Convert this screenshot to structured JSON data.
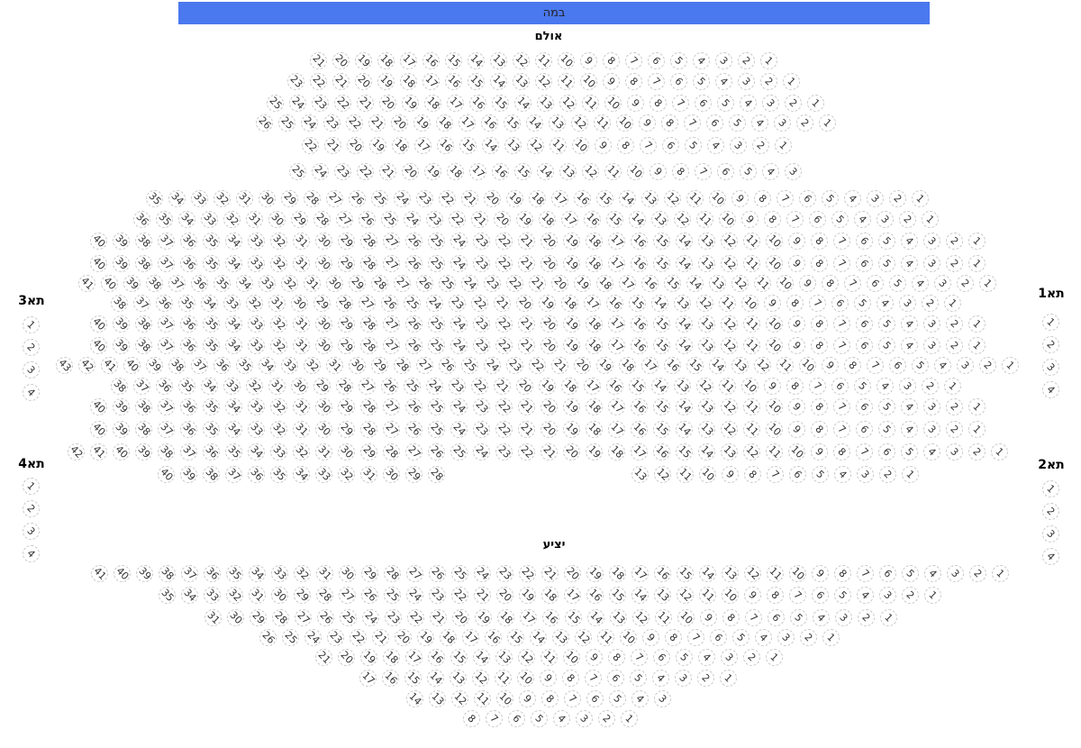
{
  "stage_label": "במה",
  "hall_label": "אולם",
  "balcony_label": "יציע",
  "colors": {
    "stage": "#4a78ee",
    "seat_border": "#c8c8c8",
    "seat_text": "#333333"
  },
  "hall_rows": [
    [
      {
        "from": 21,
        "to": 1
      }
    ],
    [
      {
        "from": 23,
        "to": 1
      }
    ],
    [
      {
        "from": 25,
        "to": 1
      }
    ],
    [
      {
        "from": 26,
        "to": 1
      }
    ],
    [
      {
        "from": 22,
        "to": 1
      }
    ],
    [
      {
        "from": 25,
        "to": 3
      }
    ],
    [
      {
        "from": 35,
        "to": 1
      }
    ],
    [
      {
        "from": 36,
        "to": 1
      }
    ],
    [
      {
        "from": 40,
        "to": 1
      }
    ],
    [
      {
        "from": 40,
        "to": 1
      }
    ],
    [
      {
        "from": 41,
        "to": 1
      }
    ],
    [
      {
        "from": 38,
        "to": 1
      }
    ],
    [
      {
        "from": 40,
        "to": 1
      }
    ],
    [
      {
        "from": 40,
        "to": 1
      }
    ],
    [
      {
        "from": 43,
        "to": 1
      }
    ],
    [
      {
        "from": 38,
        "to": 1
      }
    ],
    [
      {
        "from": 40,
        "to": 1
      }
    ],
    [
      {
        "from": 40,
        "to": 1
      }
    ],
    [
      {
        "from": 42,
        "to": 1
      }
    ],
    [
      {
        "from": 40,
        "to": 28
      },
      {
        "from": 13,
        "to": 1
      }
    ]
  ],
  "balcony_rows": [
    [
      {
        "from": 41,
        "to": 1
      }
    ],
    [
      {
        "from": 35,
        "to": 1
      }
    ],
    [
      {
        "from": 31,
        "to": 1
      }
    ],
    [
      {
        "from": 26,
        "to": 1
      }
    ],
    [
      {
        "from": 21,
        "to": 1
      }
    ],
    [
      {
        "from": 17,
        "to": 1
      }
    ],
    [
      {
        "from": 14,
        "to": 3
      }
    ],
    [
      {
        "from": 8,
        "to": 1
      }
    ]
  ],
  "boxes": [
    {
      "label": "תא1",
      "seats": [
        1,
        2,
        3,
        4
      ]
    },
    {
      "label": "תא2",
      "seats": [
        1,
        2,
        3,
        4
      ]
    },
    {
      "label": "תא3",
      "seats": [
        1,
        2,
        3,
        4
      ]
    },
    {
      "label": "תא4",
      "seats": [
        1,
        2,
        3,
        4
      ]
    }
  ]
}
